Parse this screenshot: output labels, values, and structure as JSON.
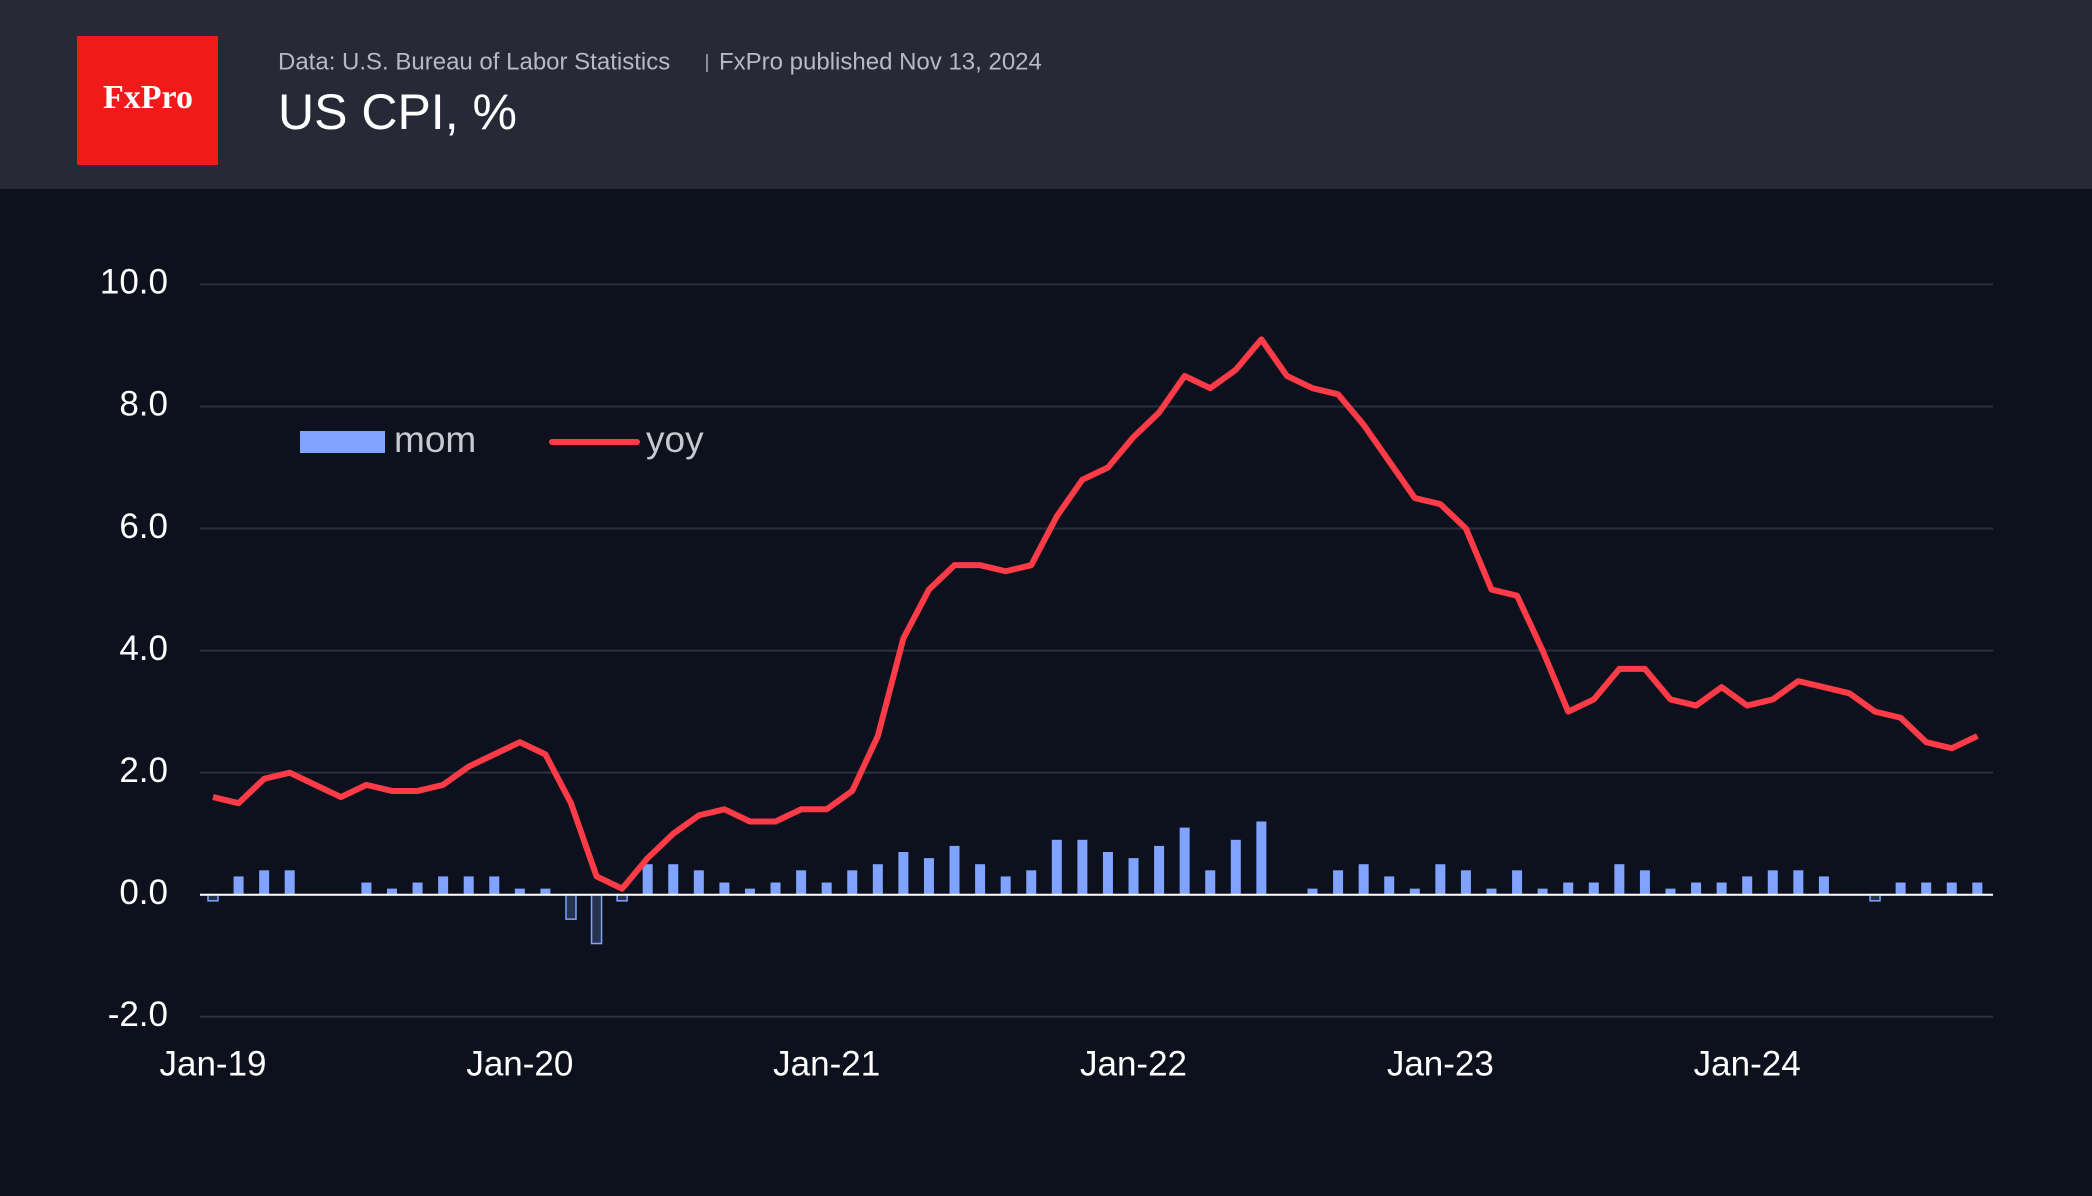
{
  "header": {
    "logo": "FxPro",
    "source": "Data: U.S. Bureau of Labor Statistics",
    "published": "FxPro published Nov 13, 2024"
  },
  "chart_data": {
    "type": "bar-line",
    "title": "US CPI, %",
    "categories": [
      "Jan-19",
      null,
      null,
      null,
      null,
      null,
      null,
      null,
      null,
      null,
      null,
      null,
      "Jan-20",
      null,
      null,
      null,
      null,
      null,
      null,
      null,
      null,
      null,
      null,
      null,
      "Jan-21",
      null,
      null,
      null,
      null,
      null,
      null,
      null,
      null,
      null,
      null,
      null,
      "Jan-22",
      null,
      null,
      null,
      null,
      null,
      null,
      null,
      null,
      null,
      null,
      null,
      "Jan-23",
      null,
      null,
      null,
      null,
      null,
      null,
      null,
      null,
      null,
      null,
      null,
      "Jan-24",
      null,
      null,
      null,
      null,
      null,
      null,
      null,
      null,
      null
    ],
    "series": [
      {
        "name": "mom",
        "type": "bar",
        "color": "#7fa3ff",
        "values": [
          -0.1,
          0.3,
          0.4,
          0.4,
          0,
          0,
          0.2,
          0.1,
          0.2,
          0.3,
          0.3,
          0.3,
          0.1,
          0.1,
          -0.4,
          -0.8,
          -0.1,
          0.5,
          0.5,
          0.4,
          0.2,
          0.1,
          0.2,
          0.4,
          0.2,
          0.4,
          0.5,
          0.7,
          0.6,
          0.8,
          0.5,
          0.3,
          0.4,
          0.9,
          0.9,
          0.7,
          0.6,
          0.8,
          1.1,
          0.4,
          0.9,
          1.2,
          0,
          0.1,
          0.4,
          0.5,
          0.3,
          0.1,
          0.5,
          0.4,
          0.1,
          0.4,
          0.1,
          0.2,
          0.2,
          0.5,
          0.4,
          0.1,
          0.2,
          0.2,
          0.3,
          0.4,
          0.4,
          0.3,
          0,
          -0.1,
          0.2,
          0.2,
          0.2,
          0.2
        ]
      },
      {
        "name": "yoy",
        "type": "line",
        "color": "#ff3b47",
        "values": [
          1.6,
          1.5,
          1.9,
          2.0,
          1.8,
          1.6,
          1.8,
          1.7,
          1.7,
          1.8,
          2.1,
          2.3,
          2.5,
          2.3,
          1.5,
          0.3,
          0.1,
          0.6,
          1.0,
          1.3,
          1.4,
          1.2,
          1.2,
          1.4,
          1.4,
          1.7,
          2.6,
          4.2,
          5.0,
          5.4,
          5.4,
          5.3,
          5.4,
          6.2,
          6.8,
          7.0,
          7.5,
          7.9,
          8.5,
          8.3,
          8.6,
          9.1,
          8.5,
          8.3,
          8.2,
          7.7,
          7.1,
          6.5,
          6.4,
          6.0,
          5.0,
          4.9,
          4.0,
          3.0,
          3.2,
          3.7,
          3.7,
          3.2,
          3.1,
          3.4,
          3.1,
          3.2,
          3.5,
          3.4,
          3.3,
          3.0,
          2.9,
          2.5,
          2.4,
          2.6
        ]
      }
    ],
    "ylim": [
      -2.2,
      10.4
    ],
    "yticks": [
      {
        "value": -2,
        "label": "-2.0"
      },
      {
        "value": 0,
        "label": "0.0"
      },
      {
        "value": 2,
        "label": "2.0"
      },
      {
        "value": 4,
        "label": "4.0"
      },
      {
        "value": 6,
        "label": "6.0"
      },
      {
        "value": 8,
        "label": "8.0"
      },
      {
        "value": 10,
        "label": "10.0"
      }
    ],
    "grid": true,
    "legend": "upper left"
  }
}
